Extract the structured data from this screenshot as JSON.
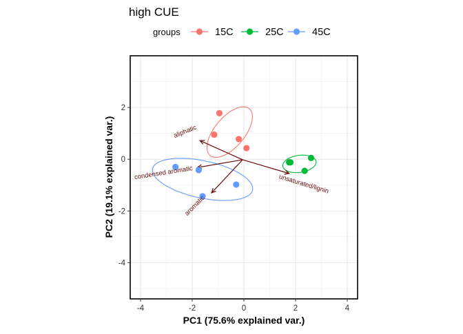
{
  "chart_data": {
    "type": "scatter",
    "title": "high CUE",
    "xlabel": "PC1 (75.6% explained var.)",
    "ylabel": "PC2 (19.1% explained var.)",
    "xlim": [
      -4.4,
      4.4
    ],
    "ylim": [
      -5.4,
      4.0
    ],
    "xticks": [
      -4,
      -2,
      0,
      2,
      4
    ],
    "yticks": [
      -4,
      -2,
      0,
      2
    ],
    "grid": true,
    "legend": {
      "title": "groups",
      "position": "top"
    },
    "series": [
      {
        "name": "15C",
        "color": "#F8766D",
        "points": [
          [
            -0.95,
            1.78
          ],
          [
            -1.15,
            0.95
          ],
          [
            -0.2,
            0.78
          ],
          [
            0.1,
            0.43
          ]
        ],
        "ellipse": {
          "cx": -0.55,
          "cy": 1.05,
          "rx": 1.18,
          "ry": 0.58,
          "angle_deg": 50
        }
      },
      {
        "name": "25C",
        "color": "#00BA38",
        "points": [
          [
            1.75,
            -0.12
          ],
          [
            2.6,
            0.05
          ],
          [
            2.35,
            -0.45
          ],
          [
            1.8,
            -0.12
          ]
        ],
        "ellipse": {
          "cx": 2.15,
          "cy": -0.18,
          "rx": 0.65,
          "ry": 0.33,
          "angle_deg": 8
        }
      },
      {
        "name": "45C",
        "color": "#619CFF",
        "points": [
          [
            -2.65,
            -0.3
          ],
          [
            -1.75,
            -0.42
          ],
          [
            -0.3,
            -0.98
          ],
          [
            -1.6,
            -1.43
          ]
        ],
        "ellipse": {
          "cx": -1.6,
          "cy": -0.78,
          "rx": 1.98,
          "ry": 0.72,
          "angle_deg": -12
        }
      }
    ],
    "loadings": {
      "color": "#6B0A0A",
      "origin": [
        -0.05,
        -0.02
      ],
      "vectors": [
        {
          "label": "aliphatic",
          "end": [
            -1.7,
            0.72
          ],
          "label_pos": [
            -2.25,
            1.0
          ],
          "label_angle": -22
        },
        {
          "label": "condensed aromatic",
          "end": [
            -1.8,
            -0.32
          ],
          "label_pos": [
            -3.1,
            -0.6
          ],
          "label_angle": -9
        },
        {
          "label": "aromatic",
          "end": [
            -1.25,
            -1.3
          ],
          "label_pos": [
            -1.85,
            -1.85
          ],
          "label_angle": -45
        },
        {
          "label": "unsaturated/lignin",
          "end": [
            1.75,
            -0.55
          ],
          "label_pos": [
            2.3,
            -1.03
          ],
          "label_angle": 17
        }
      ]
    }
  }
}
